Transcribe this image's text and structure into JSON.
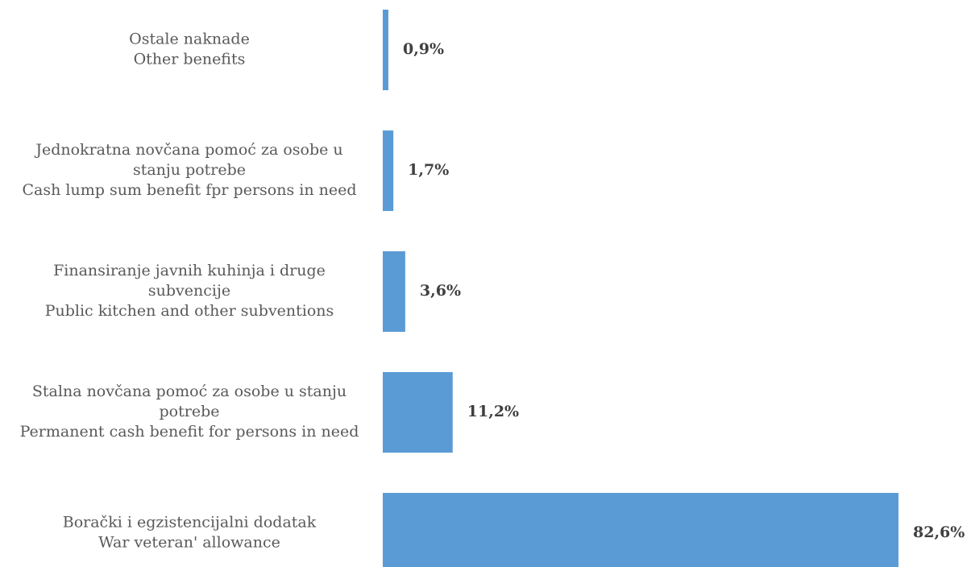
{
  "chart_data": {
    "type": "bar",
    "orientation": "horizontal",
    "categories": [
      [
        "Ostale naknade",
        "Other benefits"
      ],
      [
        "Jednokratna novčana pomoć za osobe u",
        "stanju potrebe",
        "Cash lump sum benefit fpr persons in need"
      ],
      [
        "Finansiranje javnih kuhinja i druge",
        "subvencije",
        "Public kitchen and other subventions"
      ],
      [
        "Stalna novčana pomoć za osobe u stanju",
        "potrebe",
        "Permanent cash benefit for persons in need"
      ],
      [
        "Borački i egzistencijalni dodatak",
        "War veteran' allowance"
      ]
    ],
    "values": [
      0.9,
      1.7,
      3.6,
      11.2,
      82.6
    ],
    "value_labels": [
      "0,9%",
      "1,7%",
      "3,6%",
      "11,2%",
      "82,6%"
    ],
    "unit": "%",
    "xlim": [
      0,
      82.6
    ],
    "grid": false,
    "legend": "none",
    "bar_color": "#5b9bd5"
  }
}
